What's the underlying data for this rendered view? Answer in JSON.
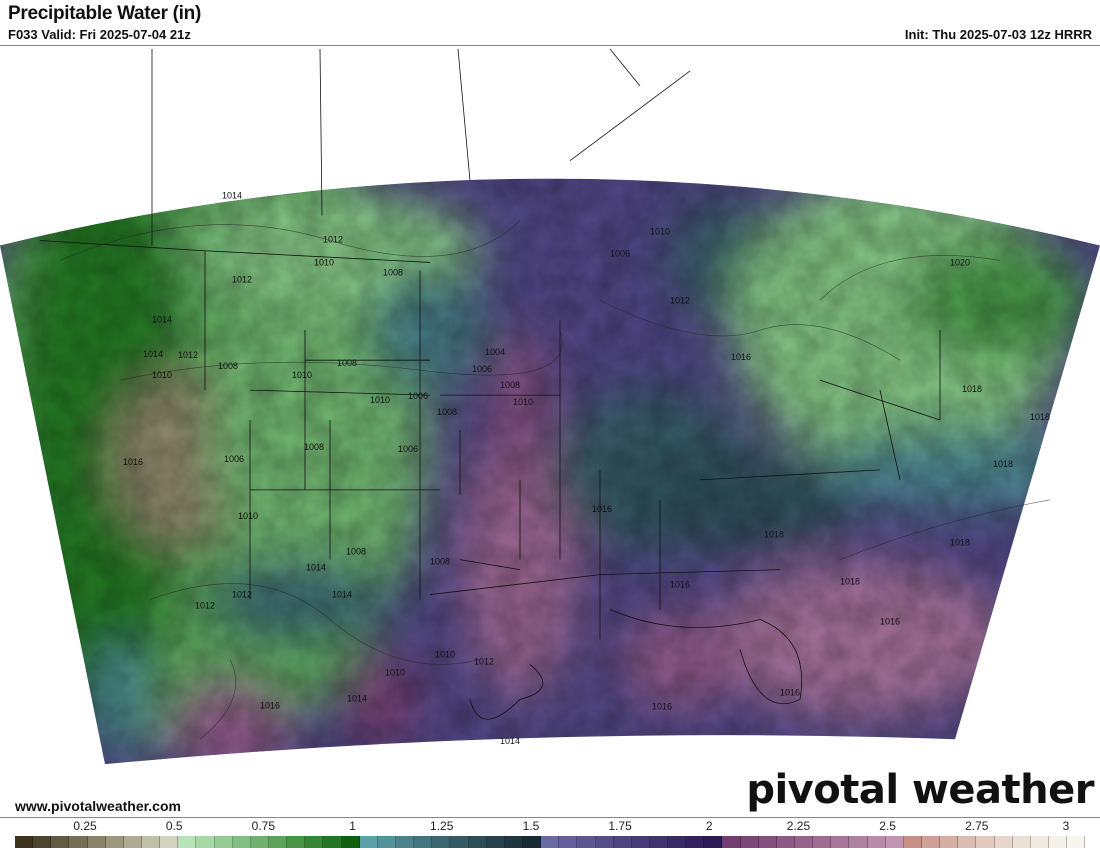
{
  "header": {
    "title": "Precipitable Water (in)",
    "valid": "F033 Valid: Fri 2025-07-04 21z",
    "init": "Init: Thu 2025-07-03 12z HRRR"
  },
  "footer": {
    "url": "www.pivotalweather.com",
    "brand": "pivotal weather"
  },
  "colorbar": {
    "tick_labels": [
      "0.25",
      "0.5",
      "0.75",
      "1",
      "1.25",
      "1.5",
      "1.75",
      "2",
      "2.25",
      "2.5",
      "2.75",
      "3"
    ],
    "colors": [
      "#3d3320",
      "#4e4531",
      "#625a43",
      "#766e56",
      "#8a8369",
      "#9d977e",
      "#b0ab94",
      "#c2bfa9",
      "#d4d2be",
      "#b8e3b8",
      "#a6d9a6",
      "#93cd93",
      "#80bf80",
      "#6db16d",
      "#5aa35a",
      "#479447",
      "#358535",
      "#237523",
      "#0f610f",
      "#5aa2a8",
      "#52929a",
      "#4a838c",
      "#42757e",
      "#3b6771",
      "#345a64",
      "#2d4d57",
      "#26414b",
      "#1f353f",
      "#182a33",
      "#6a6aa6",
      "#63609d",
      "#5c5794",
      "#554e8b",
      "#4e4582",
      "#473c79",
      "#403370",
      "#392a67",
      "#32215e",
      "#2b1a55",
      "#723d70",
      "#7b4678",
      "#844f7f",
      "#8d5986",
      "#96638d",
      "#9f6d94",
      "#a8779b",
      "#b181a2",
      "#ba8ba9",
      "#c395b0",
      "#c98f86",
      "#d09f95",
      "#d6aea3",
      "#dcbcb1",
      "#e2c9be",
      "#e8d6cb",
      "#ede1d6",
      "#f1eae0",
      "#f5f0e8",
      "#f8f4ee"
    ]
  },
  "map": {
    "isobar_labels": [
      "1014",
      "1012",
      "1010",
      "1012",
      "1014",
      "1014",
      "1012",
      "1010",
      "1008",
      "1010",
      "1008",
      "1008",
      "1006",
      "1010",
      "1016",
      "1006",
      "1008",
      "1006",
      "1008",
      "1010",
      "1010",
      "1008",
      "1004",
      "1006",
      "1008",
      "1006",
      "1010",
      "1012",
      "1008",
      "1010",
      "1014",
      "1016",
      "1020",
      "1018",
      "1018",
      "1018",
      "1018",
      "1016",
      "1016",
      "1016",
      "1018",
      "1016",
      "1016",
      "1014",
      "1014",
      "1012",
      "1012",
      "1010",
      "1012",
      "1014",
      "1018",
      "1016"
    ]
  }
}
